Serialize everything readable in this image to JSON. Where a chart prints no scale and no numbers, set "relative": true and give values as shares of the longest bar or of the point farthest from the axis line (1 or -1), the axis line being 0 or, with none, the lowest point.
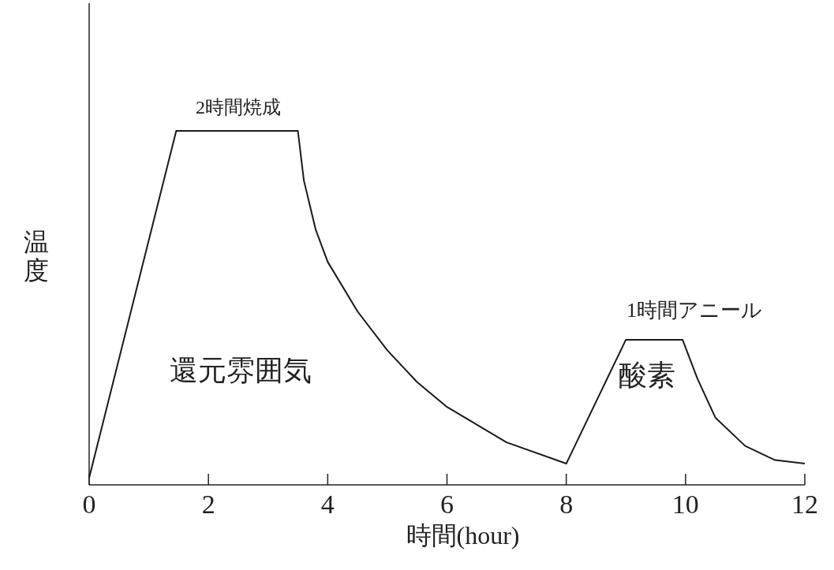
{
  "chart_data": {
    "type": "line",
    "relative": true,
    "xlabel": "時間(hour)",
    "ylabel": "温度",
    "xlim": [
      0,
      12
    ],
    "xticks": [
      0,
      2,
      4,
      6,
      8,
      10,
      12
    ],
    "marker": "none",
    "line_style": "solid",
    "legend": false,
    "grid": false,
    "x": [
      0,
      1.46,
      3.5,
      3.6,
      3.8,
      4,
      4.5,
      5,
      5.5,
      6,
      7,
      8,
      9,
      9.95,
      10.2,
      10.5,
      11,
      11.5,
      12
    ],
    "series": [
      {
        "color": "#1a1a1a",
        "values": [
          0.02,
          1,
          1,
          0.86,
          0.72,
          0.63,
          0.49,
          0.38,
          0.29,
          0.22,
          0.12,
          0.06,
          0.41,
          0.41,
          0.3,
          0.19,
          0.11,
          0.07,
          0.06
        ]
      }
    ],
    "annotations": [
      {
        "text": "2時間焼成",
        "x": 2.5,
        "y": 1
      },
      "1時間アニール",
      "還元雰囲気",
      "酸素"
    ]
  }
}
